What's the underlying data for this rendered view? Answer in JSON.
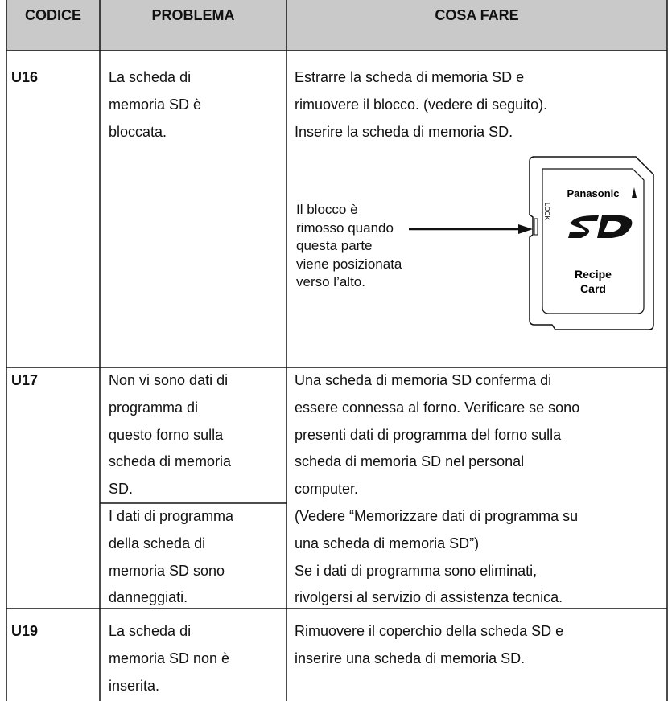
{
  "header": {
    "columns": [
      "CODICE",
      "PROBLEMA",
      "COSA FARE"
    ]
  },
  "rows": [
    {
      "code": "U16",
      "problems": [
        [
          "La scheda di",
          "memoria SD è",
          "bloccata."
        ]
      ],
      "action": [
        "Estrarre la scheda di memoria SD e",
        "rimuovere il blocco. (vedere di seguito).",
        "Inserire la scheda di memoria SD."
      ],
      "illustration": {
        "callout": [
          "Il blocco è",
          "rimosso quando",
          "questa parte",
          "viene posizionata",
          "verso l’alto."
        ],
        "brand": "Panasonic",
        "lock": "LOCK",
        "label": [
          "Recipe",
          "Card"
        ]
      }
    },
    {
      "code": "U17",
      "problems": [
        [
          "Non vi sono dati di",
          "programma di",
          "questo forno sulla",
          "scheda di memoria",
          "SD."
        ],
        [
          "I dati di programma",
          "della scheda di",
          "memoria SD sono",
          "danneggiati."
        ]
      ],
      "action": [
        "Una scheda di memoria SD conferma di",
        "essere connessa al forno. Verificare se sono",
        "presenti dati di programma del forno sulla",
        "scheda di memoria SD nel personal",
        "computer.",
        "(Vedere “Memorizzare dati di programma su",
        "una scheda di memoria SD”)",
        "Se i dati di programma sono eliminati,",
        "rivolgersi al servizio di assistenza tecnica."
      ]
    },
    {
      "code": "U19",
      "problems": [
        [
          "La scheda di",
          "memoria SD non è",
          "inserita."
        ]
      ],
      "action": [
        "Rimuovere il coperchio della scheda SD e",
        "inserire una scheda di memoria SD."
      ]
    }
  ]
}
